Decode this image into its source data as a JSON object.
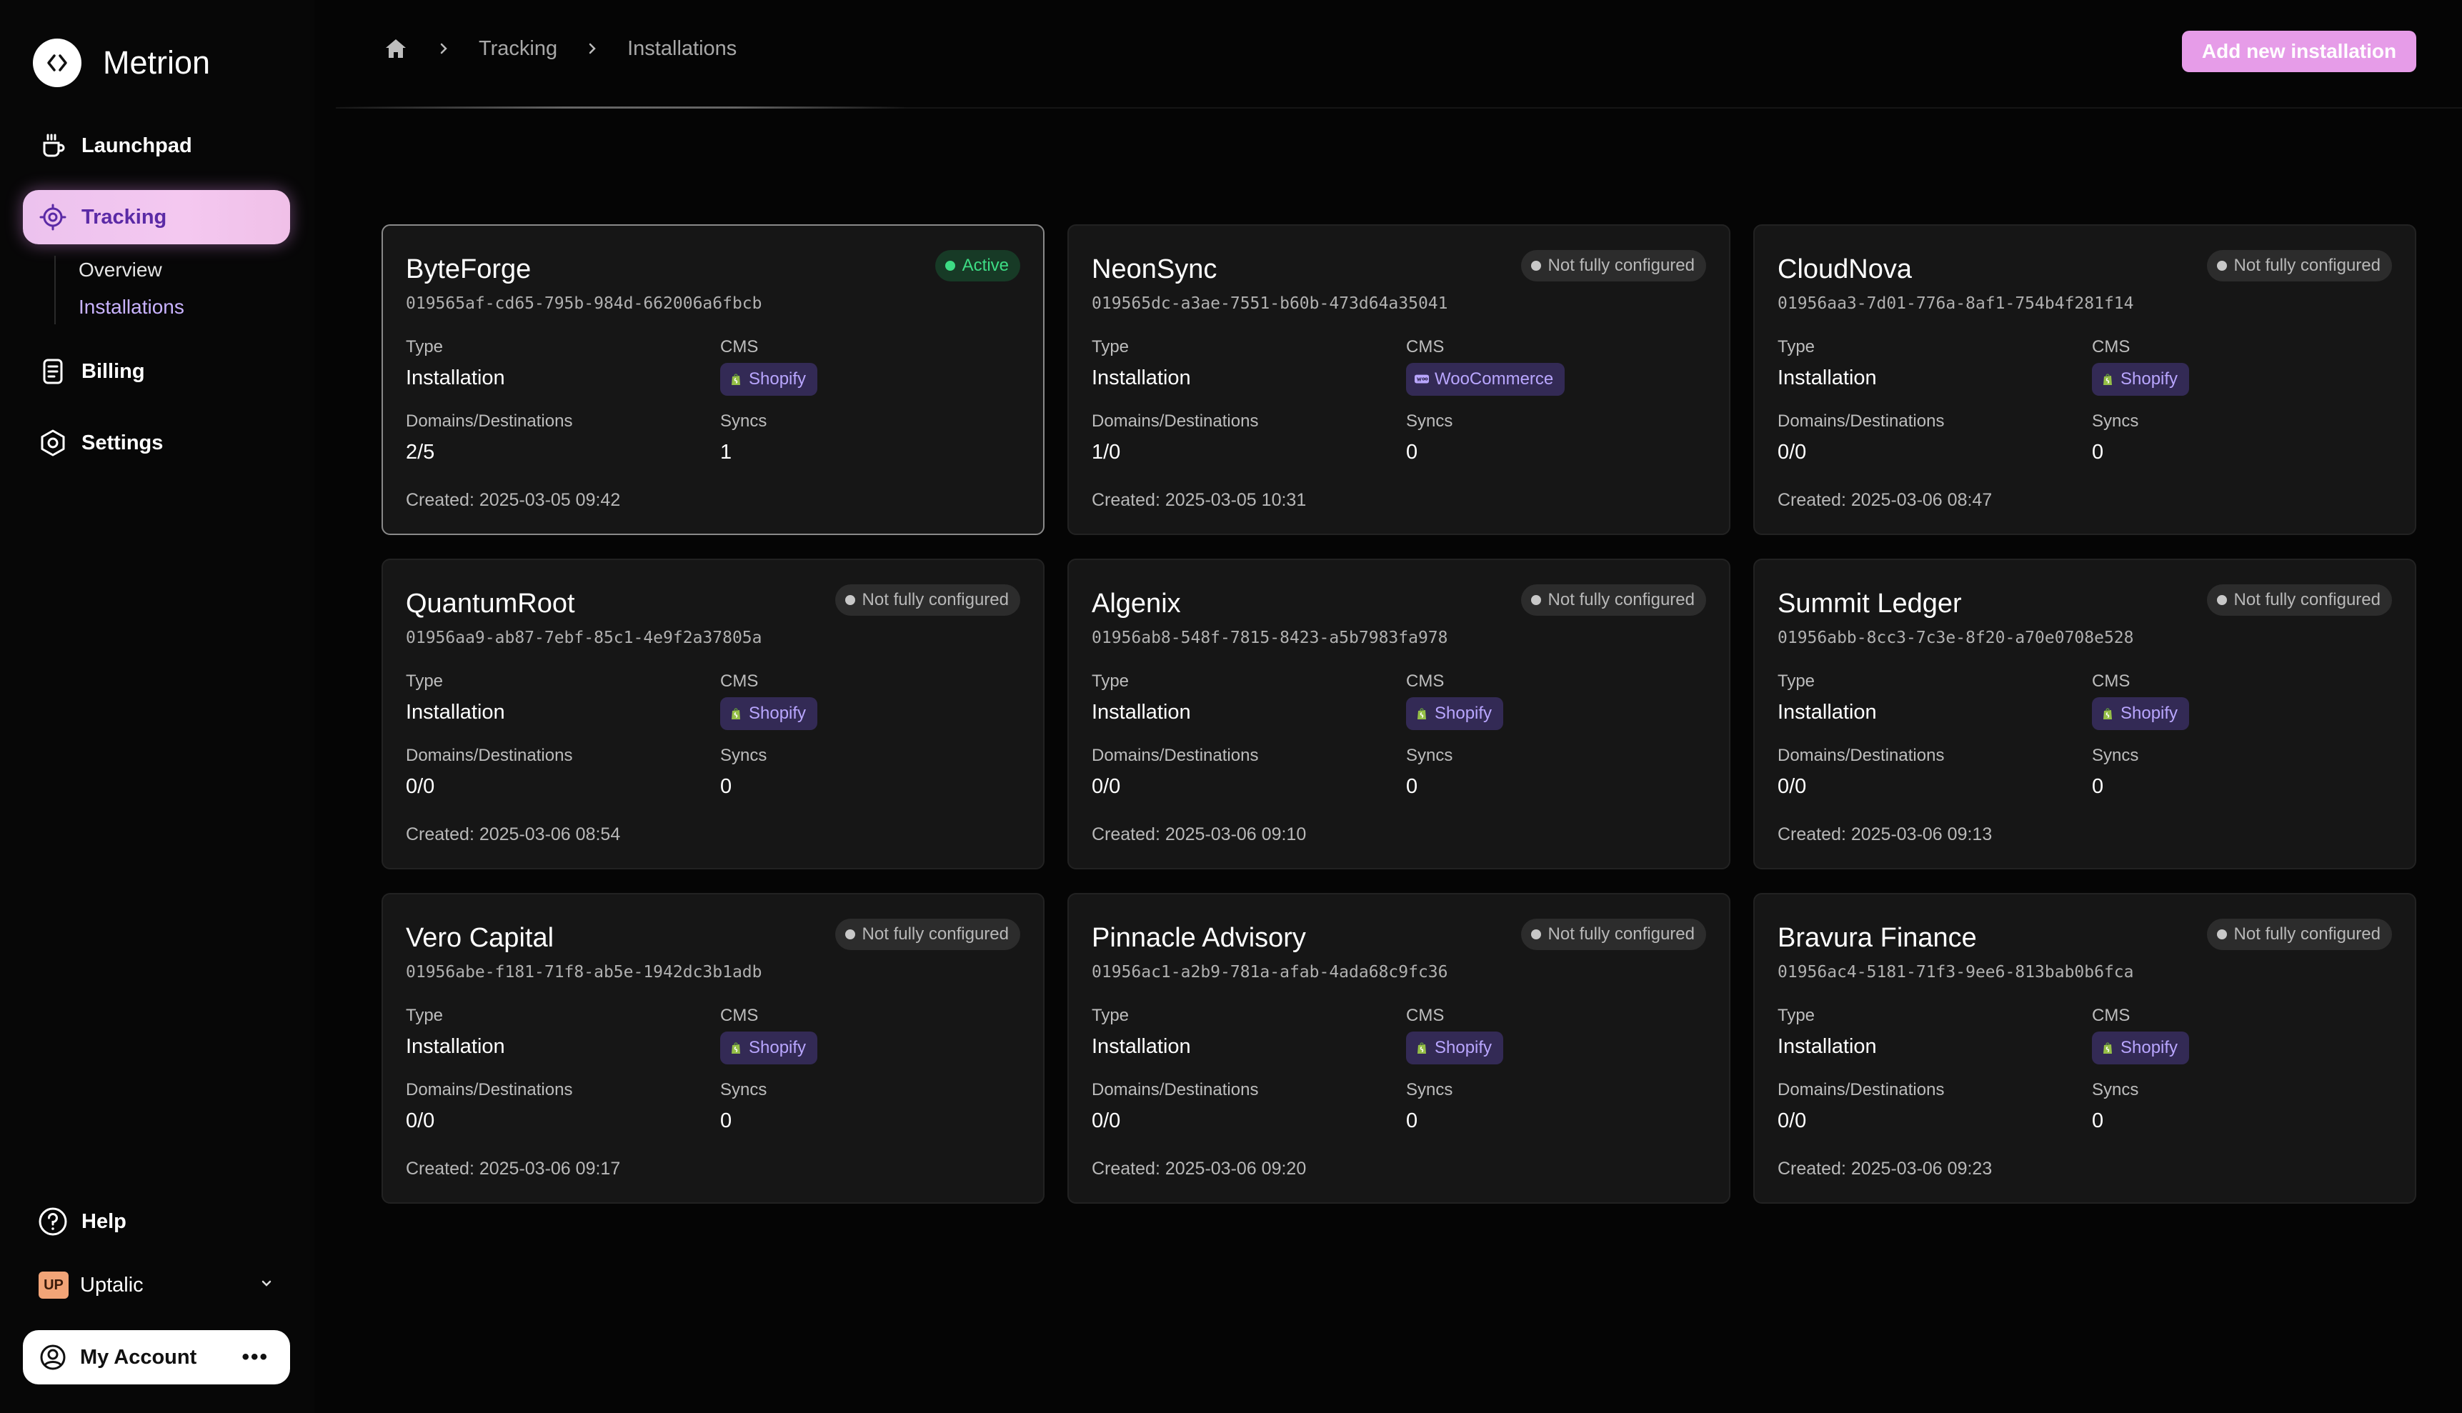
{
  "app": {
    "name": "Metrion"
  },
  "sidebar": {
    "items": [
      {
        "label": "Launchpad",
        "icon": "cup-icon"
      },
      {
        "label": "Tracking",
        "icon": "target-icon"
      },
      {
        "label": "Billing",
        "icon": "receipt-icon"
      },
      {
        "label": "Settings",
        "icon": "settings-icon"
      }
    ],
    "subitems": [
      {
        "label": "Overview"
      },
      {
        "label": "Installations"
      }
    ],
    "help_label": "Help",
    "org": {
      "badge": "UP",
      "name": "Uptalic"
    },
    "account_label": "My Account",
    "account_more": "•••"
  },
  "header": {
    "breadcrumbs": [
      "Tracking",
      "Installations"
    ],
    "add_button": "Add new installation"
  },
  "card_labels": {
    "type": "Type",
    "cms": "CMS",
    "domains": "Domains/Destinations",
    "syncs": "Syncs"
  },
  "colors": {
    "accent": "#e69ce8",
    "active_status": "#3ddc84",
    "cms_badge_bg": "#332a55",
    "cms_badge_text": "#b9a6ff"
  },
  "installations": [
    {
      "name": "ByteForge",
      "id": "019565af-cd65-795b-984d-662006a6fbcb",
      "status": "Active",
      "type": "Installation",
      "cms": "Shopify",
      "domains": "2/5",
      "syncs": "1",
      "created": "Created: 2025-03-05 09:42"
    },
    {
      "name": "NeonSync",
      "id": "019565dc-a3ae-7551-b60b-473d64a35041",
      "status": "Not fully configured",
      "type": "Installation",
      "cms": "WooCommerce",
      "domains": "1/0",
      "syncs": "0",
      "created": "Created: 2025-03-05 10:31"
    },
    {
      "name": "CloudNova",
      "id": "01956aa3-7d01-776a-8af1-754b4f281f14",
      "status": "Not fully configured",
      "type": "Installation",
      "cms": "Shopify",
      "domains": "0/0",
      "syncs": "0",
      "created": "Created: 2025-03-06 08:47"
    },
    {
      "name": "QuantumRoot",
      "id": "01956aa9-ab87-7ebf-85c1-4e9f2a37805a",
      "status": "Not fully configured",
      "type": "Installation",
      "cms": "Shopify",
      "domains": "0/0",
      "syncs": "0",
      "created": "Created: 2025-03-06 08:54"
    },
    {
      "name": "Algenix",
      "id": "01956ab8-548f-7815-8423-a5b7983fa978",
      "status": "Not fully configured",
      "type": "Installation",
      "cms": "Shopify",
      "domains": "0/0",
      "syncs": "0",
      "created": "Created: 2025-03-06 09:10"
    },
    {
      "name": "Summit Ledger",
      "id": "01956abb-8cc3-7c3e-8f20-a70e0708e528",
      "status": "Not fully configured",
      "type": "Installation",
      "cms": "Shopify",
      "domains": "0/0",
      "syncs": "0",
      "created": "Created: 2025-03-06 09:13"
    },
    {
      "name": "Vero Capital",
      "id": "01956abe-f181-71f8-ab5e-1942dc3b1adb",
      "status": "Not fully configured",
      "type": "Installation",
      "cms": "Shopify",
      "domains": "0/0",
      "syncs": "0",
      "created": "Created: 2025-03-06 09:17"
    },
    {
      "name": "Pinnacle Advisory",
      "id": "01956ac1-a2b9-781a-afab-4ada68c9fc36",
      "status": "Not fully configured",
      "type": "Installation",
      "cms": "Shopify",
      "domains": "0/0",
      "syncs": "0",
      "created": "Created: 2025-03-06 09:20"
    },
    {
      "name": "Bravura Finance",
      "id": "01956ac4-5181-71f3-9ee6-813bab0b6fca",
      "status": "Not fully configured",
      "type": "Installation",
      "cms": "Shopify",
      "domains": "0/0",
      "syncs": "0",
      "created": "Created: 2025-03-06 09:23"
    }
  ]
}
